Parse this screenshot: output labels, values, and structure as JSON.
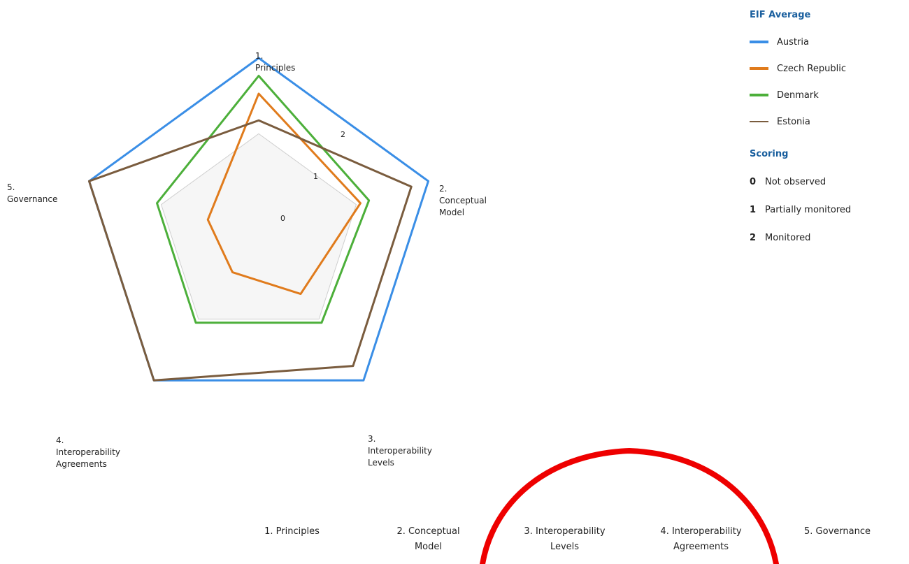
{
  "chart_data": {
    "type": "radar",
    "axes": [
      "1.\nPrinciples",
      "2.\nConceptual\nModel",
      "3.\nInteroperability\nLevels",
      "4.\nInteroperability\nAgreements",
      "5.\nGovernance"
    ],
    "level_labels": [
      "0",
      "1",
      "2"
    ],
    "rlim": [
      0,
      2
    ],
    "grid": true,
    "series": [
      {
        "name": "Austria",
        "values": [
          2.0,
          2.0,
          2.0,
          2.0,
          2.0
        ],
        "color": "#3a8ee6"
      },
      {
        "name": "Czech Republic",
        "values": [
          1.6,
          1.2,
          0.8,
          0.5,
          0.6
        ],
        "color": "#e07b1c"
      },
      {
        "name": "Denmark",
        "values": [
          1.8,
          1.3,
          1.2,
          1.2,
          1.2
        ],
        "color": "#4caf3a"
      },
      {
        "name": "Estonia",
        "values": [
          1.3,
          1.8,
          1.8,
          2.0,
          2.0
        ],
        "color": "#7a5c3e"
      }
    ],
    "legend_placement": "top-right"
  },
  "legend": {
    "title": "EIF Average",
    "items": [
      "Austria",
      "Czech Republic",
      "Denmark",
      "Estonia"
    ]
  },
  "scoring": {
    "title": "Scoring",
    "items": [
      {
        "num": "0",
        "label": "Not observed"
      },
      {
        "num": "1",
        "label": "Partially monitored"
      },
      {
        "num": "2",
        "label": "Monitored"
      }
    ]
  },
  "bottom_axis": [
    "1. Principles",
    "2. Conceptual\nModel",
    "3. Interoperability\nLevels",
    "4. Interoperability\nAgreements",
    "5. Governance"
  ],
  "colors": {
    "annotation": "#ee0000",
    "grid": "#cfcfcf",
    "fill": "#f6f6f6",
    "title": "#1a5f9e"
  }
}
